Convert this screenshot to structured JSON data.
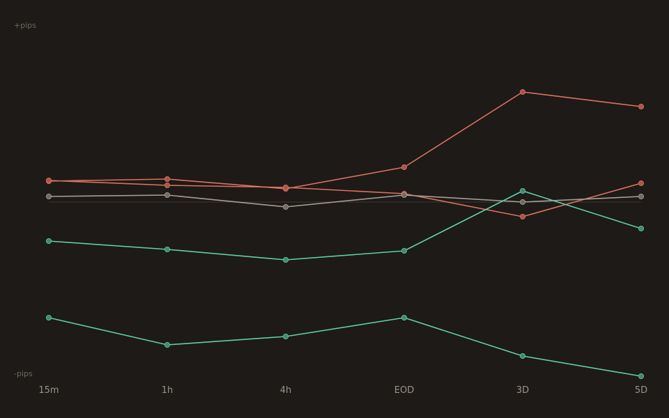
{
  "chart_data": {
    "type": "line",
    "title": "",
    "xlabel": "",
    "ylabel": "",
    "y_top_label": "+pips",
    "y_bottom_label": "-pips",
    "categories": [
      "15m",
      "1h",
      "4h",
      "EOD",
      "3D",
      "5D"
    ],
    "ylim": [
      -100,
      100
    ],
    "baseline": 0,
    "grid": false,
    "legend": "none",
    "series": [
      {
        "values": [
          12.0,
          13.2,
          7.6,
          20.0,
          63.2,
          54.8
        ],
        "color": "#e07063",
        "point_color": "#a8574c"
      },
      {
        "values": [
          12.4,
          9.6,
          8.4,
          4.8,
          -8.4,
          10.8
        ],
        "color": "#e07063",
        "point_color": "#a8574c"
      },
      {
        "values": [
          3.2,
          4.0,
          -2.8,
          4.0,
          0.0,
          3.2
        ],
        "color": "#a89f96",
        "point_color": "#736b64"
      },
      {
        "values": [
          -22.4,
          -27.2,
          -33.2,
          -28.0,
          6.4,
          -15.2
        ],
        "color": "#5fcfaa",
        "point_color": "#43896f"
      },
      {
        "values": [
          -66.4,
          -82.0,
          -77.2,
          -66.4,
          -88.4,
          -100.0
        ],
        "color": "#5fcfaa",
        "point_color": "#43896f"
      }
    ],
    "baseline_color": "#3a3530"
  }
}
